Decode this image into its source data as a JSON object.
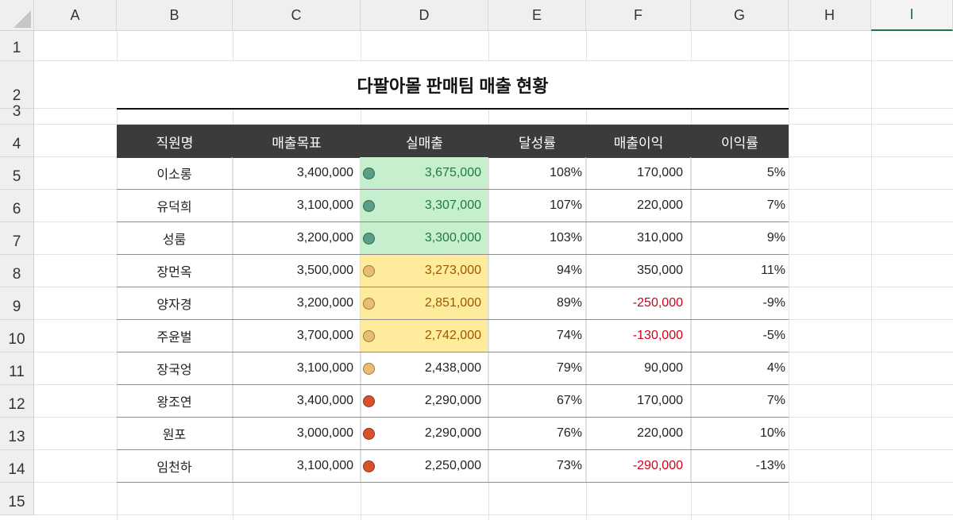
{
  "sheet": {
    "columns": [
      "A",
      "B",
      "C",
      "D",
      "E",
      "F",
      "G",
      "H",
      "I"
    ],
    "selected_column": "I",
    "rows": [
      "1",
      "2",
      "3",
      "4",
      "5",
      "6",
      "7",
      "8",
      "9",
      "10",
      "11",
      "12",
      "13",
      "14",
      "15"
    ]
  },
  "table": {
    "title": "다팔아몰 판매팀 매출 현황",
    "headers": [
      "직원명",
      "매출목표",
      "실매출",
      "달성률",
      "매출이익",
      "이익률"
    ],
    "rows": [
      {
        "name": "이소롱",
        "target": "3,400,000",
        "actual": "3,675,000",
        "rate": "108%",
        "profit": "170,000",
        "margin": "5%",
        "status": "green"
      },
      {
        "name": "유덕희",
        "target": "3,100,000",
        "actual": "3,307,000",
        "rate": "107%",
        "profit": "220,000",
        "margin": "7%",
        "status": "green"
      },
      {
        "name": "성룸",
        "target": "3,200,000",
        "actual": "3,300,000",
        "rate": "103%",
        "profit": "310,000",
        "margin": "9%",
        "status": "green"
      },
      {
        "name": "장먼옥",
        "target": "3,500,000",
        "actual": "3,273,000",
        "rate": "94%",
        "profit": "350,000",
        "margin": "11%",
        "status": "yellow"
      },
      {
        "name": "양자경",
        "target": "3,200,000",
        "actual": "2,851,000",
        "rate": "89%",
        "profit": "-250,000",
        "margin": "-9%",
        "status": "yellow"
      },
      {
        "name": "주윤벌",
        "target": "3,700,000",
        "actual": "2,742,000",
        "rate": "74%",
        "profit": "-130,000",
        "margin": "-5%",
        "status": "yellow"
      },
      {
        "name": "장국엉",
        "target": "3,100,000",
        "actual": "2,438,000",
        "rate": "79%",
        "profit": "90,000",
        "margin": "4%",
        "status": "yellow"
      },
      {
        "name": "왕조연",
        "target": "3,400,000",
        "actual": "2,290,000",
        "rate": "67%",
        "profit": "170,000",
        "margin": "7%",
        "status": "red"
      },
      {
        "name": "원포",
        "target": "3,000,000",
        "actual": "2,290,000",
        "rate": "76%",
        "profit": "220,000",
        "margin": "10%",
        "status": "red"
      },
      {
        "name": "임천하",
        "target": "3,100,000",
        "actual": "2,250,000",
        "rate": "73%",
        "profit": "-290,000",
        "margin": "-13%",
        "status": "red"
      }
    ]
  },
  "colors": {
    "header_bg": "#3b3b3b",
    "highlight_green_bg": "#c6efce",
    "highlight_green_text": "#217a3c",
    "highlight_yellow_bg": "#ffeb9c",
    "highlight_yellow_text": "#9c5700",
    "dot_green": "#5a9e86",
    "dot_yellow": "#e8bd70",
    "dot_red": "#d9512c",
    "negative_text": "#d0021b"
  }
}
